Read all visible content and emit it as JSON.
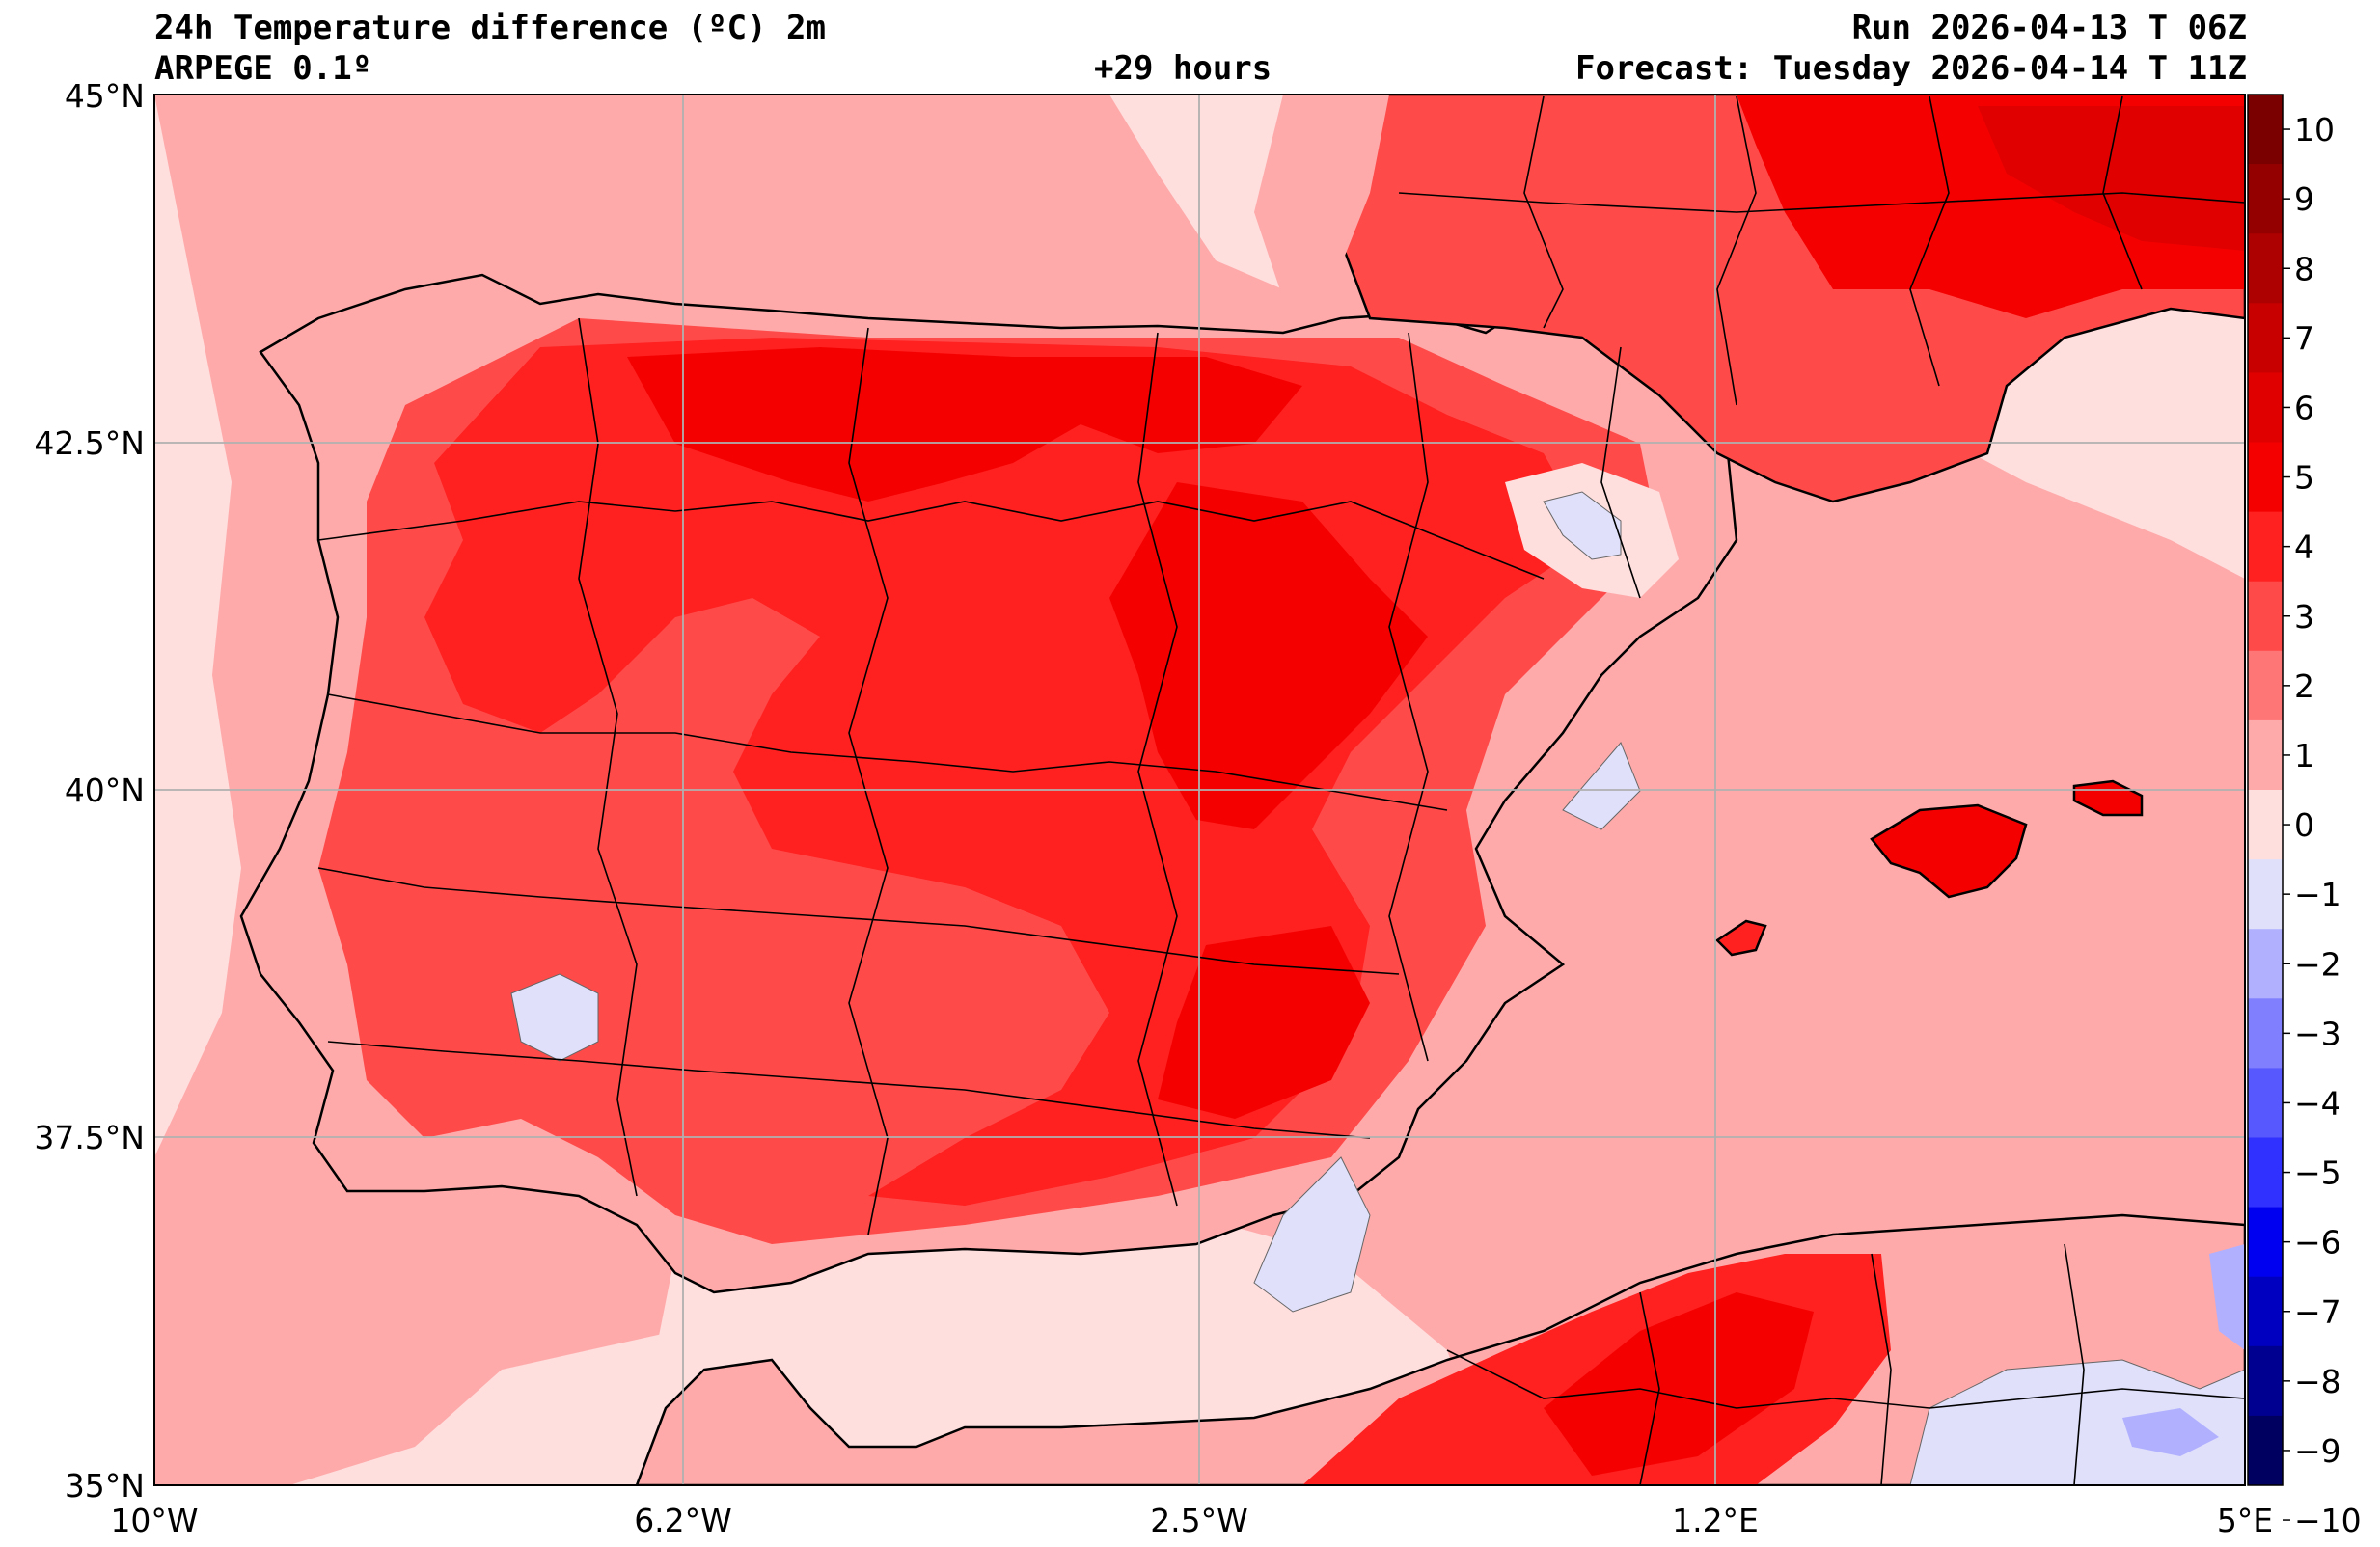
{
  "header": {
    "title": "24h Temperature difference (ºC) 2m",
    "model": "ARPEGE 0.1º",
    "run": "Run 2026-04-13 T 06Z",
    "lead_time": "+29 hours",
    "forecast": "Forecast: Tuesday 2026-04-14 T 11Z"
  },
  "axes": {
    "lat_labels": [
      "45°N",
      "42.5°N",
      "40°N",
      "37.5°N",
      "35°N"
    ],
    "lon_labels": [
      "10°W",
      "6.2°W",
      "2.5°W",
      "1.2°E",
      "5°E"
    ]
  },
  "colorbar": {
    "labels": [
      "10",
      "9",
      "8",
      "7",
      "6",
      "5",
      "4",
      "3",
      "2",
      "1",
      "0",
      "−1",
      "−2",
      "−3",
      "−4",
      "−5",
      "−6",
      "−7",
      "−8",
      "−9",
      "−10"
    ],
    "colors": [
      "#7a0000",
      "#940000",
      "#ad0000",
      "#c80000",
      "#e00000",
      "#f50000",
      "#ff2020",
      "#ff4a4a",
      "#ff7676",
      "#ffaaaa",
      "#ffdede",
      "#e0e0fb",
      "#b0b0ff",
      "#8080ff",
      "#5858ff",
      "#3030ff",
      "#0000f0",
      "#0000c0",
      "#000090",
      "#000060"
    ]
  },
  "colors": {
    "sea": "#ffdede",
    "land": "#ffaaaa",
    "grid": "#b0b0b0"
  }
}
